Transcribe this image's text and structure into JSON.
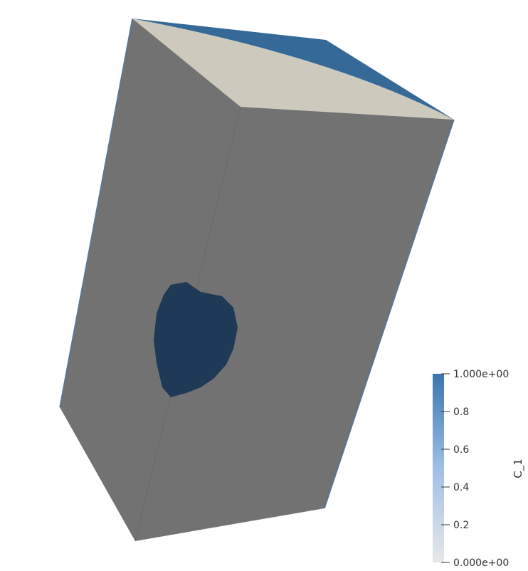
{
  "scene": {
    "surface_color": "#727272",
    "top_face_color": "#cdcabd",
    "high_color": "#356a98",
    "inclusion_color": "#1f3a56"
  },
  "colorbar": {
    "title": "C_1",
    "range": [
      0,
      1
    ],
    "colors": {
      "low": "#e8e8ea",
      "mid": "#9fbfe5",
      "high": "#3a75ad"
    },
    "ticks": [
      {
        "value": 1.0,
        "label": "1.000e+00"
      },
      {
        "value": 0.8,
        "label": "0.8"
      },
      {
        "value": 0.6,
        "label": "0.6"
      },
      {
        "value": 0.4,
        "label": "0.4"
      },
      {
        "value": 0.2,
        "label": "0.2"
      },
      {
        "value": 0.0,
        "label": "0.000e+00"
      }
    ]
  }
}
